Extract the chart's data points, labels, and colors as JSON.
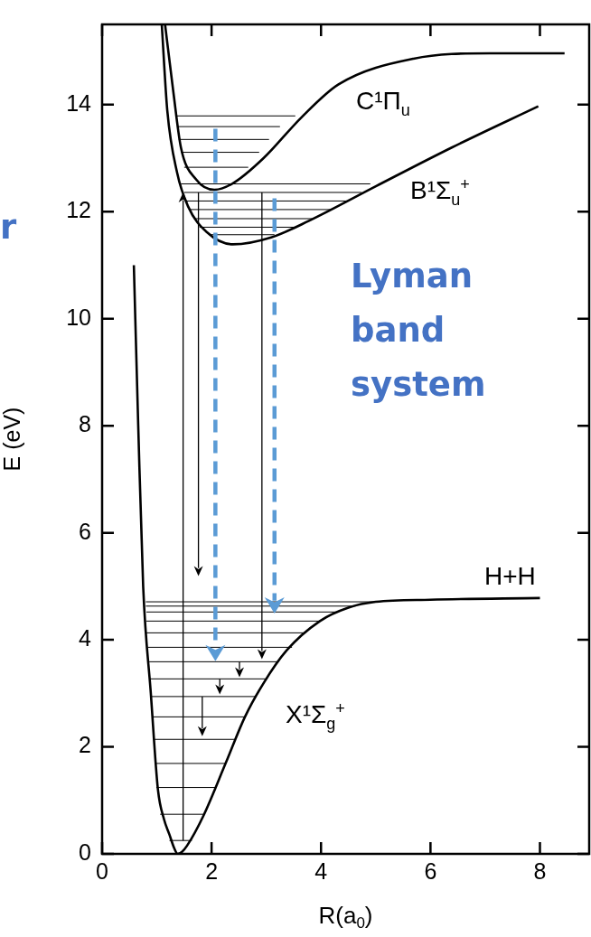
{
  "chart_data": {
    "type": "line",
    "xlabel": "R(a$_{0}$)",
    "ylabel": "E (eV)",
    "xlim": [
      0,
      8.9
    ],
    "ylim": [
      0,
      15.5
    ],
    "xticks": [
      0,
      2,
      4,
      6,
      8
    ],
    "yticks": [
      0,
      2,
      4,
      6,
      8,
      10,
      12,
      14
    ],
    "grid": false,
    "legend": false,
    "marker": "none",
    "annotations": [
      "C¹Π$_{u}$",
      "B¹Σ$_{u}$$^{+}$",
      "X¹Σ$_{g}$$^{+}$",
      "H+H",
      "r",
      "Lyman band system"
    ],
    "series": [
      {
        "color": "#000000",
        "x": [
          0.58,
          0.66,
          0.75,
          0.89,
          1.02,
          1.13,
          1.23,
          1.32,
          1.38,
          1.46,
          1.55,
          1.85,
          2.26,
          2.61,
          2.95,
          3.37,
          3.98,
          4.5,
          5.0,
          6.0,
          8.0
        ],
        "values": [
          11,
          8,
          5,
          3,
          1.2,
          0.65,
          0.36,
          0.1,
          0,
          0.04,
          0.15,
          0.71,
          1.7,
          2.56,
          3.19,
          3.8,
          4.35,
          4.6,
          4.71,
          4.75,
          4.78
        ]
      },
      {
        "color": "#000000",
        "x": [
          1.09,
          1.19,
          1.37,
          1.57,
          1.91,
          2.39,
          3.09,
          3.78,
          5.01,
          6.39,
          7.97
        ],
        "values": [
          15.5,
          13.9,
          12.73,
          12.1,
          11.62,
          11.39,
          11.52,
          11.83,
          12.48,
          13.2,
          13.97
        ]
      },
      {
        "color": "#000000",
        "x": [
          1.15,
          1.3,
          1.44,
          1.72,
          2.05,
          2.39,
          2.95,
          3.64,
          4.32,
          5.69,
          7.08,
          8.45
        ],
        "values": [
          15.5,
          14.25,
          13.2,
          12.6,
          12.41,
          12.53,
          13.0,
          13.76,
          14.38,
          14.86,
          14.96,
          14.96
        ]
      }
    ]
  }
}
